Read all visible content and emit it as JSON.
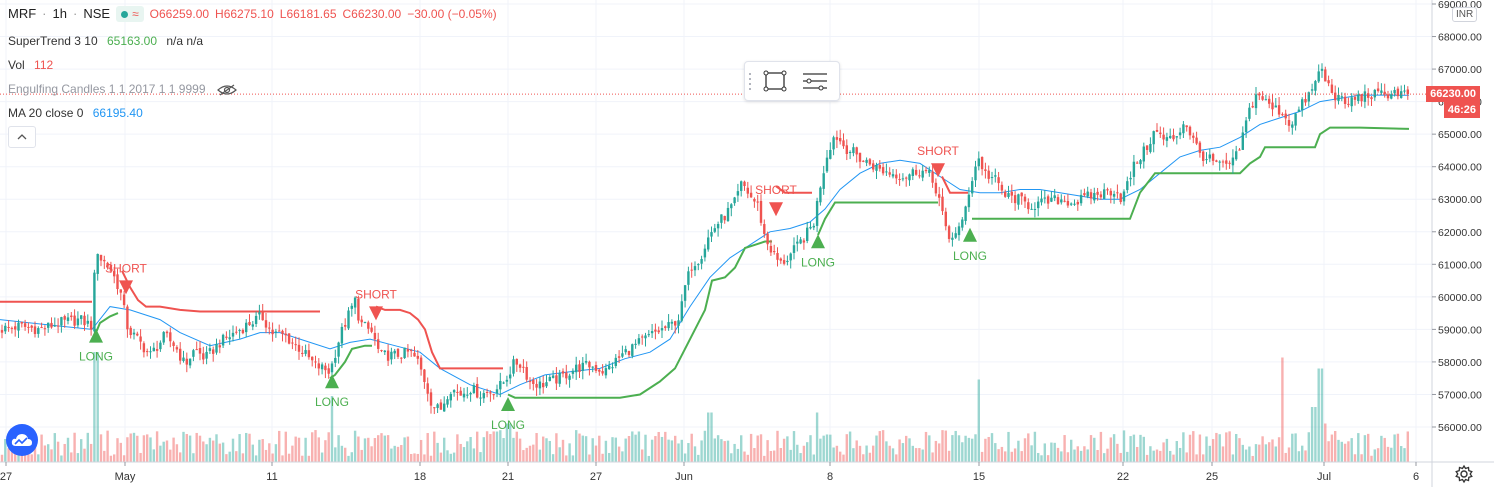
{
  "header": {
    "symbol": "MRF",
    "interval": "1h",
    "exchange": "NSE",
    "ohlc": {
      "o": "O66259.00",
      "h": "H66275.10",
      "l": "L66181.65",
      "c": "C66230.00",
      "change": "−30.00 (−0.05%)"
    }
  },
  "indicators": {
    "supertrend": {
      "label": "SuperTrend 3 10",
      "value": "65163.00",
      "extra": "n/a n/a"
    },
    "volume": {
      "label": "Vol",
      "value": "112"
    },
    "engulfing": {
      "label": "Engulfing Candles 1 1 2017 1 1 9999"
    },
    "ma": {
      "label": "MA 20 close 0",
      "value": "66195.40"
    }
  },
  "price_axis": {
    "currency": "INR",
    "last_price": "66230.00",
    "countdown": "46:26",
    "ticks": [
      "56000.00",
      "57000.00",
      "58000.00",
      "59000.00",
      "60000.00",
      "61000.00",
      "62000.00",
      "63000.00",
      "64000.00",
      "65000.00",
      "66000.00",
      "67000.00",
      "68000.00",
      "69000.00"
    ]
  },
  "time_axis": {
    "ticks": [
      "27",
      "May",
      "11",
      "18",
      "21",
      "27",
      "Jun",
      "8",
      "15",
      "22",
      "25",
      "Jul",
      "6"
    ]
  },
  "colors": {
    "up": "#26a69a",
    "down": "#ef5350",
    "ma": "#2196f3",
    "supertrend_up": "#4caf50",
    "supertrend_down": "#ef5350",
    "last_price": "#ef5350",
    "countdown": "#ef5350",
    "grid": "#f0f3fa"
  },
  "chart_data": {
    "type": "candlestick",
    "title": "MRF · 1h · NSE",
    "ylim": [
      55200,
      69000
    ],
    "last_price": 66230,
    "candle_waypoints": [
      [
        0,
        59000
      ],
      [
        20,
        59100
      ],
      [
        40,
        59000
      ],
      [
        60,
        59200
      ],
      [
        80,
        59300
      ],
      [
        92,
        59100
      ],
      [
        96,
        61600
      ],
      [
        100,
        61200
      ],
      [
        110,
        60900
      ],
      [
        120,
        60200
      ],
      [
        128,
        59000
      ],
      [
        140,
        58600
      ],
      [
        150,
        58200
      ],
      [
        165,
        58800
      ],
      [
        175,
        58500
      ],
      [
        185,
        57900
      ],
      [
        195,
        58400
      ],
      [
        205,
        58100
      ],
      [
        220,
        58600
      ],
      [
        235,
        58900
      ],
      [
        250,
        59200
      ],
      [
        262,
        59400
      ],
      [
        272,
        58900
      ],
      [
        285,
        58800
      ],
      [
        300,
        58400
      ],
      [
        315,
        57900
      ],
      [
        330,
        57700
      ],
      [
        340,
        58800
      ],
      [
        348,
        59400
      ],
      [
        355,
        59900
      ],
      [
        360,
        59200
      ],
      [
        372,
        58900
      ],
      [
        380,
        58200
      ],
      [
        395,
        58200
      ],
      [
        410,
        58300
      ],
      [
        418,
        58000
      ],
      [
        425,
        57400
      ],
      [
        432,
        56700
      ],
      [
        440,
        56500
      ],
      [
        450,
        57200
      ],
      [
        460,
        57000
      ],
      [
        470,
        57200
      ],
      [
        480,
        57000
      ],
      [
        492,
        57100
      ],
      [
        502,
        57300
      ],
      [
        508,
        57600
      ],
      [
        515,
        58000
      ],
      [
        522,
        57900
      ],
      [
        530,
        57400
      ],
      [
        540,
        57300
      ],
      [
        550,
        57400
      ],
      [
        560,
        57500
      ],
      [
        575,
        57800
      ],
      [
        590,
        57900
      ],
      [
        605,
        57700
      ],
      [
        615,
        58000
      ],
      [
        625,
        58300
      ],
      [
        640,
        58600
      ],
      [
        655,
        58900
      ],
      [
        670,
        59100
      ],
      [
        680,
        59400
      ],
      [
        685,
        60300
      ],
      [
        692,
        61000
      ],
      [
        700,
        61200
      ],
      [
        708,
        61800
      ],
      [
        716,
        62200
      ],
      [
        725,
        62500
      ],
      [
        735,
        62900
      ],
      [
        742,
        63500
      ],
      [
        750,
        63100
      ],
      [
        758,
        62800
      ],
      [
        765,
        61800
      ],
      [
        772,
        61400
      ],
      [
        780,
        61000
      ],
      [
        788,
        61200
      ],
      [
        796,
        61500
      ],
      [
        806,
        61900
      ],
      [
        814,
        62300
      ],
      [
        820,
        63400
      ],
      [
        828,
        64500
      ],
      [
        835,
        65000
      ],
      [
        845,
        64600
      ],
      [
        855,
        64400
      ],
      [
        862,
        64200
      ],
      [
        870,
        64100
      ],
      [
        880,
        63900
      ],
      [
        892,
        63800
      ],
      [
        905,
        63700
      ],
      [
        918,
        63900
      ],
      [
        928,
        63800
      ],
      [
        938,
        63200
      ],
      [
        948,
        61700
      ],
      [
        955,
        62000
      ],
      [
        962,
        62200
      ],
      [
        970,
        63400
      ],
      [
        978,
        64300
      ],
      [
        985,
        63800
      ],
      [
        995,
        63600
      ],
      [
        1005,
        63100
      ],
      [
        1018,
        63000
      ],
      [
        1030,
        62800
      ],
      [
        1045,
        62900
      ],
      [
        1060,
        63000
      ],
      [
        1075,
        62900
      ],
      [
        1090,
        63100
      ],
      [
        1105,
        63200
      ],
      [
        1115,
        63300
      ],
      [
        1122,
        63000
      ],
      [
        1128,
        63500
      ],
      [
        1135,
        64100
      ],
      [
        1145,
        64500
      ],
      [
        1155,
        65100
      ],
      [
        1165,
        64800
      ],
      [
        1175,
        64900
      ],
      [
        1185,
        65400
      ],
      [
        1192,
        64900
      ],
      [
        1200,
        64400
      ],
      [
        1210,
        64200
      ],
      [
        1222,
        64000
      ],
      [
        1232,
        64100
      ],
      [
        1238,
        64400
      ],
      [
        1244,
        65100
      ],
      [
        1250,
        65800
      ],
      [
        1258,
        66300
      ],
      [
        1265,
        66000
      ],
      [
        1272,
        65800
      ],
      [
        1282,
        65700
      ],
      [
        1290,
        65300
      ],
      [
        1298,
        65700
      ],
      [
        1306,
        66100
      ],
      [
        1314,
        66400
      ],
      [
        1320,
        67100
      ],
      [
        1326,
        66600
      ],
      [
        1335,
        66200
      ],
      [
        1345,
        65900
      ],
      [
        1355,
        66100
      ],
      [
        1368,
        66200
      ],
      [
        1380,
        66200
      ],
      [
        1395,
        66300
      ],
      [
        1409,
        66230
      ]
    ],
    "ma_waypoints": [
      [
        0,
        59300
      ],
      [
        60,
        59100
      ],
      [
        92,
        59000
      ],
      [
        110,
        59700
      ],
      [
        130,
        59600
      ],
      [
        160,
        59300
      ],
      [
        180,
        58900
      ],
      [
        210,
        58500
      ],
      [
        240,
        58700
      ],
      [
        260,
        58900
      ],
      [
        280,
        58900
      ],
      [
        300,
        58700
      ],
      [
        330,
        58400
      ],
      [
        350,
        58600
      ],
      [
        370,
        58700
      ],
      [
        395,
        58500
      ],
      [
        420,
        58300
      ],
      [
        440,
        57800
      ],
      [
        470,
        57300
      ],
      [
        500,
        57000
      ],
      [
        520,
        57300
      ],
      [
        545,
        57600
      ],
      [
        570,
        57700
      ],
      [
        600,
        57800
      ],
      [
        625,
        58100
      ],
      [
        650,
        58300
      ],
      [
        670,
        58700
      ],
      [
        690,
        59700
      ],
      [
        710,
        60600
      ],
      [
        730,
        61200
      ],
      [
        750,
        61600
      ],
      [
        770,
        62000
      ],
      [
        790,
        62100
      ],
      [
        810,
        62300
      ],
      [
        825,
        62700
      ],
      [
        840,
        63300
      ],
      [
        860,
        63800
      ],
      [
        880,
        64100
      ],
      [
        900,
        64200
      ],
      [
        920,
        64100
      ],
      [
        940,
        63700
      ],
      [
        960,
        63300
      ],
      [
        980,
        63200
      ],
      [
        1000,
        63200
      ],
      [
        1020,
        63300
      ],
      [
        1040,
        63300
      ],
      [
        1060,
        63200
      ],
      [
        1080,
        63100
      ],
      [
        1100,
        63000
      ],
      [
        1120,
        63000
      ],
      [
        1140,
        63300
      ],
      [
        1160,
        63800
      ],
      [
        1180,
        64300
      ],
      [
        1200,
        64500
      ],
      [
        1220,
        64600
      ],
      [
        1240,
        64900
      ],
      [
        1260,
        65300
      ],
      [
        1280,
        65500
      ],
      [
        1300,
        65700
      ],
      [
        1320,
        66000
      ],
      [
        1340,
        66100
      ],
      [
        1360,
        66200
      ],
      [
        1380,
        66200
      ],
      [
        1409,
        66195
      ]
    ],
    "supertrend_segments": [
      {
        "trend": "down",
        "points": [
          [
            0,
            59850
          ],
          [
            92,
            59850
          ]
        ]
      },
      {
        "trend": "up",
        "points": [
          [
            96,
            58900
          ],
          [
            100,
            59200
          ],
          [
            110,
            59400
          ],
          [
            118,
            59500
          ]
        ]
      },
      {
        "trend": "down",
        "points": [
          [
            122,
            60800
          ],
          [
            130,
            60300
          ],
          [
            138,
            59900
          ],
          [
            146,
            59700
          ],
          [
            160,
            59700
          ],
          [
            180,
            59600
          ],
          [
            200,
            59550
          ],
          [
            240,
            59550
          ],
          [
            300,
            59550
          ],
          [
            320,
            59550
          ]
        ]
      },
      {
        "trend": "up",
        "points": [
          [
            330,
            57500
          ],
          [
            335,
            57600
          ],
          [
            345,
            58000
          ],
          [
            352,
            58400
          ],
          [
            365,
            58500
          ],
          [
            372,
            58500
          ]
        ]
      },
      {
        "trend": "down",
        "points": [
          [
            376,
            59700
          ],
          [
            385,
            59600
          ],
          [
            400,
            59600
          ],
          [
            410,
            59500
          ],
          [
            418,
            59300
          ],
          [
            425,
            59000
          ],
          [
            432,
            58300
          ],
          [
            440,
            57800
          ],
          [
            460,
            57800
          ],
          [
            480,
            57800
          ],
          [
            503,
            57800
          ]
        ]
      },
      {
        "trend": "up",
        "points": [
          [
            508,
            57000
          ],
          [
            515,
            56900
          ],
          [
            540,
            56900
          ],
          [
            580,
            56900
          ],
          [
            620,
            56900
          ],
          [
            640,
            57000
          ],
          [
            660,
            57400
          ],
          [
            675,
            57800
          ],
          [
            685,
            58400
          ],
          [
            695,
            59000
          ],
          [
            705,
            59600
          ],
          [
            712,
            60500
          ],
          [
            725,
            60600
          ],
          [
            735,
            60900
          ],
          [
            745,
            61500
          ],
          [
            755,
            61600
          ],
          [
            765,
            61700
          ],
          [
            772,
            61700
          ]
        ]
      },
      {
        "trend": "down",
        "points": [
          [
            776,
            63400
          ],
          [
            785,
            63200
          ],
          [
            800,
            63200
          ],
          [
            812,
            63200
          ]
        ]
      },
      {
        "trend": "up",
        "points": [
          [
            818,
            61900
          ],
          [
            825,
            62400
          ],
          [
            835,
            62900
          ],
          [
            860,
            62900
          ],
          [
            900,
            62900
          ],
          [
            938,
            62900
          ]
        ]
      },
      {
        "trend": "down",
        "points": [
          [
            942,
            63700
          ],
          [
            950,
            63200
          ],
          [
            960,
            63200
          ],
          [
            968,
            63200
          ]
        ]
      },
      {
        "trend": "up",
        "points": [
          [
            972,
            62400
          ],
          [
            980,
            62400
          ],
          [
            1050,
            62400
          ],
          [
            1130,
            62400
          ],
          [
            1140,
            63200
          ],
          [
            1155,
            63800
          ],
          [
            1170,
            63800
          ],
          [
            1240,
            63800
          ],
          [
            1250,
            64100
          ],
          [
            1260,
            64300
          ],
          [
            1265,
            64600
          ],
          [
            1280,
            64600
          ],
          [
            1315,
            64600
          ],
          [
            1320,
            65000
          ],
          [
            1330,
            65200
          ],
          [
            1360,
            65200
          ],
          [
            1409,
            65163
          ]
        ]
      }
    ],
    "signals": [
      {
        "type": "LONG",
        "x": 96,
        "price": 58900
      },
      {
        "type": "SHORT",
        "x": 126,
        "price": 60200
      },
      {
        "type": "LONG",
        "x": 332,
        "price": 57500
      },
      {
        "type": "SHORT",
        "x": 376,
        "price": 59400
      },
      {
        "type": "LONG",
        "x": 508,
        "price": 56800
      },
      {
        "type": "SHORT",
        "x": 776,
        "price": 62600
      },
      {
        "type": "LONG",
        "x": 818,
        "price": 61800
      },
      {
        "type": "SHORT",
        "x": 938,
        "price": 63800
      },
      {
        "type": "LONG",
        "x": 970,
        "price": 62000
      }
    ],
    "volume_note": "volume bars plotted along bottom; relative heights, synthetic",
    "volume_spikes": [
      [
        96,
        1.0
      ],
      [
        332,
        0.6
      ],
      [
        508,
        0.35
      ],
      [
        710,
        0.45
      ],
      [
        818,
        0.45
      ],
      [
        978,
        0.75
      ],
      [
        1282,
        0.95
      ],
      [
        1314,
        0.5
      ],
      [
        1320,
        0.85
      ],
      [
        1326,
        0.35
      ]
    ]
  }
}
